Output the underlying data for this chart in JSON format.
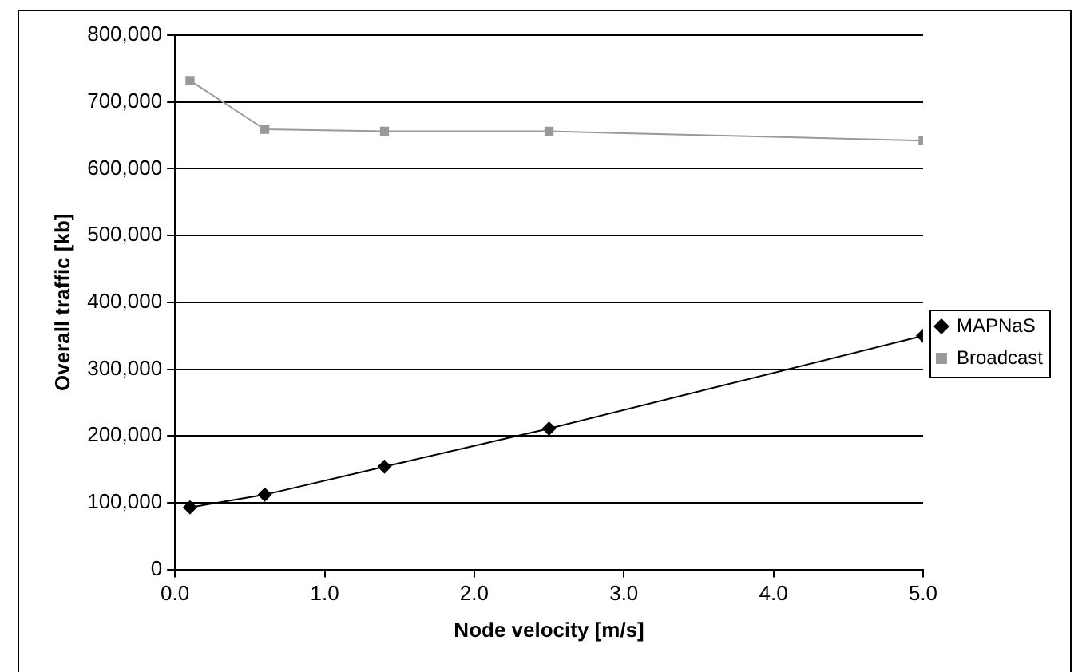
{
  "chart_data": {
    "type": "line",
    "xlabel": "Node velocity [m/s]",
    "ylabel": "Overall traffic [kb]",
    "x": [
      0.1,
      0.6,
      1.4,
      2.5,
      5.0
    ],
    "series": [
      {
        "name": "MAPNaS",
        "color": "#000000",
        "marker": "diamond",
        "values": [
          93000,
          112000,
          154000,
          211000,
          350000
        ]
      },
      {
        "name": "Broadcast",
        "color": "#999999",
        "marker": "square",
        "values": [
          732000,
          659000,
          656000,
          656000,
          642000
        ]
      }
    ],
    "xlim": [
      0,
      5
    ],
    "xticks": [
      {
        "value": 0,
        "label": "0.0"
      },
      {
        "value": 1,
        "label": "1.0"
      },
      {
        "value": 2,
        "label": "2.0"
      },
      {
        "value": 3,
        "label": "3.0"
      },
      {
        "value": 4,
        "label": "4.0"
      },
      {
        "value": 5,
        "label": "5.0"
      }
    ],
    "ylim": [
      0,
      800000
    ],
    "yticks": [
      0,
      {
        "value": 100000,
        "label": "100,000"
      },
      {
        "value": 200000,
        "label": "200,000"
      },
      {
        "value": 300000,
        "label": "300,000"
      },
      {
        "value": 400000,
        "label": "400,000"
      },
      {
        "value": 500000,
        "label": "500,000"
      },
      {
        "value": 600000,
        "label": "600,000"
      },
      {
        "value": 700000,
        "label": "700,000"
      },
      {
        "value": 800000,
        "label": "800,000"
      }
    ],
    "grid": "y",
    "legend": "right",
    "line_style": "solid"
  }
}
